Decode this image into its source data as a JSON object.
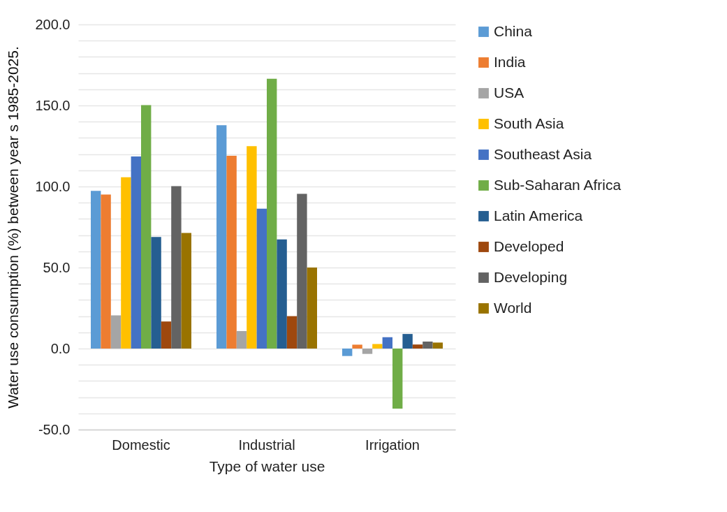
{
  "chart_data": {
    "type": "bar",
    "xlabel": "Type of water use",
    "ylabel": "Water use consumption (%) between year s 1985-2025.",
    "categories": [
      "Domestic",
      "Industrial",
      "Irrigation"
    ],
    "series": [
      {
        "name": "China",
        "color": "#5b9bd5",
        "values": [
          97.3,
          137.8,
          -4.6
        ]
      },
      {
        "name": "India",
        "color": "#ed7d31",
        "values": [
          95.0,
          119.0,
          2.4
        ]
      },
      {
        "name": "USA",
        "color": "#a5a5a5",
        "values": [
          20.5,
          10.8,
          -3.3
        ]
      },
      {
        "name": "South Asia",
        "color": "#ffc000",
        "values": [
          105.7,
          124.9,
          2.8
        ]
      },
      {
        "name": "Southeast Asia",
        "color": "#4472c4",
        "values": [
          118.5,
          86.3,
          7.0
        ]
      },
      {
        "name": "Sub-Saharan Africa",
        "color": "#70ad47",
        "values": [
          150.2,
          166.5,
          -37.1
        ]
      },
      {
        "name": "Latin America",
        "color": "#255e91",
        "values": [
          68.9,
          67.3,
          9.0
        ]
      },
      {
        "name": "Developed",
        "color": "#9e480e",
        "values": [
          16.7,
          20.0,
          2.5
        ]
      },
      {
        "name": "Developing",
        "color": "#636363",
        "values": [
          100.2,
          95.5,
          4.3
        ]
      },
      {
        "name": "World",
        "color": "#997300",
        "values": [
          71.3,
          50.0,
          3.7
        ]
      }
    ],
    "ylim": [
      -50,
      200
    ],
    "yticks": [
      {
        "value": -50,
        "label": "-50.0"
      },
      {
        "value": -40,
        "label": null
      },
      {
        "value": -30,
        "label": null
      },
      {
        "value": -20,
        "label": null
      },
      {
        "value": -10,
        "label": null
      },
      {
        "value": 0,
        "label": "0.0"
      },
      {
        "value": 10,
        "label": null
      },
      {
        "value": 20,
        "label": null
      },
      {
        "value": 30,
        "label": null
      },
      {
        "value": 40,
        "label": null
      },
      {
        "value": 50,
        "label": "50.0"
      },
      {
        "value": 60,
        "label": null
      },
      {
        "value": 70,
        "label": null
      },
      {
        "value": 80,
        "label": null
      },
      {
        "value": 90,
        "label": null
      },
      {
        "value": 100,
        "label": "100.0"
      },
      {
        "value": 110,
        "label": null
      },
      {
        "value": 120,
        "label": null
      },
      {
        "value": 130,
        "label": null
      },
      {
        "value": 140,
        "label": null
      },
      {
        "value": 150,
        "label": "150.0"
      },
      {
        "value": 160,
        "label": null
      },
      {
        "value": 170,
        "label": null
      },
      {
        "value": 180,
        "label": null
      },
      {
        "value": 190,
        "label": null
      },
      {
        "value": 200,
        "label": "200.0"
      }
    ],
    "grid": true,
    "legend": "right"
  }
}
